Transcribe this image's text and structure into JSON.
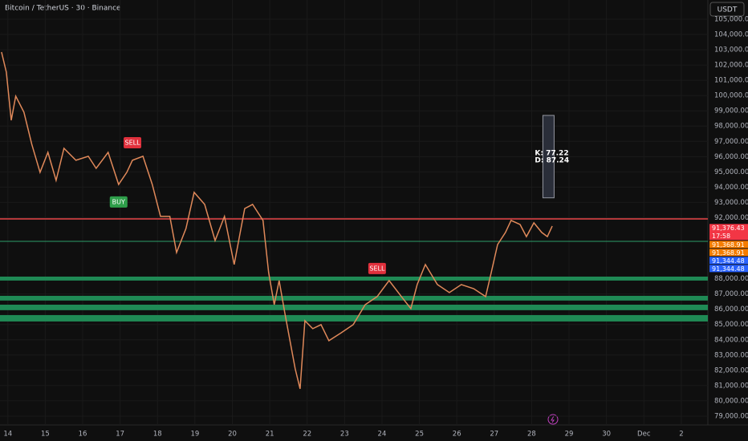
{
  "chart_data": {
    "type": "line",
    "title": "Bitcoin / TetherUS · 30 · Binance",
    "currency": "USDT",
    "x": [
      13.83,
      13.96,
      14.09,
      14.21,
      14.43,
      14.64,
      14.86,
      15.07,
      15.29,
      15.5,
      15.82,
      16.15,
      16.36,
      16.68,
      16.96,
      17.18,
      17.33,
      17.61,
      17.86,
      18.08,
      18.33,
      18.51,
      18.76,
      18.98,
      19.26,
      19.54,
      19.79,
      20.05,
      20.33,
      20.54,
      20.82,
      20.97,
      21.12,
      21.25,
      21.4,
      21.68,
      21.81,
      21.94,
      22.15,
      22.37,
      22.58,
      22.91,
      23.23,
      23.55,
      23.87,
      24.19,
      24.52,
      24.77,
      24.94,
      25.16,
      25.48,
      25.8,
      26.12,
      26.45,
      26.77,
      26.92,
      27.09,
      27.3,
      27.45,
      27.69,
      27.86,
      28.06,
      28.27,
      28.42,
      28.55
    ],
    "values": [
      102850,
      101530,
      98380,
      99960,
      98910,
      96810,
      94970,
      96280,
      94440,
      96540,
      95760,
      96020,
      95230,
      96280,
      94180,
      94970,
      95760,
      96020,
      94180,
      92080,
      92080,
      89720,
      91290,
      93660,
      92870,
      90500,
      92080,
      88930,
      92600,
      92870,
      91820,
      88410,
      86300,
      87880,
      85780,
      82100,
      80790,
      85250,
      84730,
      84990,
      83940,
      84460,
      84990,
      86300,
      86830,
      87880,
      86830,
      86040,
      87620,
      88930,
      87620,
      87090,
      87620,
      87350,
      86830,
      88410,
      90240,
      91030,
      91820,
      91550,
      90760,
      91660,
      91030,
      90760,
      91450
    ],
    "color": "#e0895a",
    "xlim": [
      13.79,
      32.71
    ],
    "ylim": [
      78420,
      106260
    ],
    "xticks": [
      14,
      15,
      16,
      17,
      18,
      19,
      20,
      21,
      22,
      23,
      24,
      25,
      26,
      27,
      28,
      29,
      30,
      {
        "value": 31,
        "label": "Dec"
      },
      {
        "value": 32,
        "label": "2"
      }
    ],
    "yticks": [
      {
        "value": 105000,
        "label": "105,000.00"
      },
      {
        "value": 104000,
        "label": "104,000.00"
      },
      {
        "value": 103000,
        "label": "103,000.00"
      },
      {
        "value": 102000,
        "label": "102,000.00"
      },
      {
        "value": 101000,
        "label": "101,000.00"
      },
      {
        "value": 100000,
        "label": "100,000.00"
      },
      {
        "value": 99000,
        "label": "99,000.00"
      },
      {
        "value": 98000,
        "label": "98,000.00"
      },
      {
        "value": 97000,
        "label": "97,000.00"
      },
      {
        "value": 96000,
        "label": "96,000.00"
      },
      {
        "value": 95000,
        "label": "95,000.00"
      },
      {
        "value": 94000,
        "label": "94,000.00"
      },
      {
        "value": 93000,
        "label": "93,000.00"
      },
      {
        "value": 92000,
        "label": "92,000.00"
      },
      {
        "value": 88000,
        "label": "88,000.00"
      },
      {
        "value": 87000,
        "label": "87,000.00"
      },
      {
        "value": 86000,
        "label": "86,000.00"
      },
      {
        "value": 85000,
        "label": "85,000.00"
      },
      {
        "value": 84000,
        "label": "84,000.00"
      },
      {
        "value": 83000,
        "label": "83,000.00"
      },
      {
        "value": 82000,
        "label": "82,000.00"
      },
      {
        "value": 81000,
        "label": "81,000.00"
      },
      {
        "value": 80000,
        "label": "80,000.00"
      },
      {
        "value": 79000,
        "label": "79,000.00"
      }
    ],
    "levels": [
      {
        "value": 91920,
        "color": "#b2383a"
      },
      {
        "value": 90450,
        "color": "#2e9e6a"
      }
    ],
    "zones": [
      {
        "low": 87880,
        "high": 88140
      },
      {
        "low": 86570,
        "high": 86880
      },
      {
        "low": 85940,
        "high": 86300
      },
      {
        "low": 85200,
        "high": 85620
      }
    ],
    "zone_color": "#1f8a55",
    "signals": [
      {
        "label": "BUY",
        "x": 16.96,
        "y": 93030,
        "color": "#2e9e4a"
      },
      {
        "label": "SELL",
        "x": 17.33,
        "y": 96910,
        "color": "#e0303c"
      },
      {
        "label": "SELL",
        "x": 23.87,
        "y": 88670,
        "color": "#e0303c"
      }
    ],
    "price_labels": [
      {
        "value": 91376.43,
        "label": "91,376.43",
        "sub": "17:58",
        "color": "#f23645"
      },
      {
        "value": 91368.91,
        "label": "91,368.91",
        "color": "#f57c00"
      },
      {
        "value": 91368.91,
        "label": "91,368.91",
        "color": "#f57c00"
      },
      {
        "value": 91344.48,
        "label": "91,344.48",
        "color": "#2962ff"
      },
      {
        "value": 91344.48,
        "label": "91,344.48",
        "color": "#2962ff"
      }
    ],
    "stoch": {
      "k": "K: 77.22",
      "d": "D: 87.24",
      "high": 98700,
      "low": 93300
    }
  }
}
